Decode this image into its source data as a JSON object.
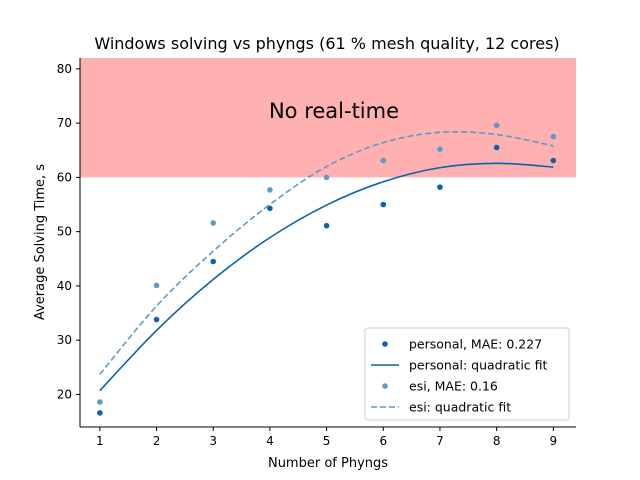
{
  "chart_data": {
    "type": "scatter",
    "title": "Windows solving vs phyngs (61 % mesh quality, 12 cores)",
    "xlabel": "Number of Phyngs",
    "ylabel": "Average Solving Time, s",
    "xlim": [
      0.65,
      9.4
    ],
    "ylim": [
      14,
      82
    ],
    "xticks": [
      1,
      2,
      3,
      4,
      5,
      6,
      7,
      8,
      9
    ],
    "yticks": [
      20,
      30,
      40,
      50,
      60,
      70,
      80
    ],
    "region": {
      "label": "No real-time",
      "y_from": 60,
      "y_to": 82,
      "color": "#ffb0b0"
    },
    "x": [
      1,
      2,
      3,
      4,
      5,
      6,
      7,
      8,
      9
    ],
    "series": [
      {
        "name": "personal, MAE: 0.227",
        "kind": "points",
        "color": "#0a62b0",
        "values": [
          16.6,
          33.8,
          44.5,
          54.3,
          51.1,
          55.0,
          58.2,
          65.5,
          63.1
        ]
      },
      {
        "name": "personal: quadratic fit",
        "kind": "line",
        "dash": "solid",
        "color": "#0a62b0",
        "values": [
          20.7,
          31.8,
          41.2,
          48.9,
          54.9,
          59.2,
          61.8,
          62.6,
          61.9
        ]
      },
      {
        "name": "esi, MAE: 0.16",
        "kind": "points",
        "color": "#5b9bcc",
        "values": [
          18.6,
          40.1,
          51.6,
          57.7,
          60.0,
          63.1,
          65.2,
          69.6,
          67.5
        ]
      },
      {
        "name": "esi: quadratic fit",
        "kind": "line",
        "dash": "dashed",
        "color": "#5b9bcc",
        "values": [
          23.7,
          36.3,
          46.4,
          55.0,
          62.0,
          66.4,
          68.3,
          67.9,
          65.8
        ]
      }
    ],
    "legend_position": "lower-right",
    "grid": false
  }
}
